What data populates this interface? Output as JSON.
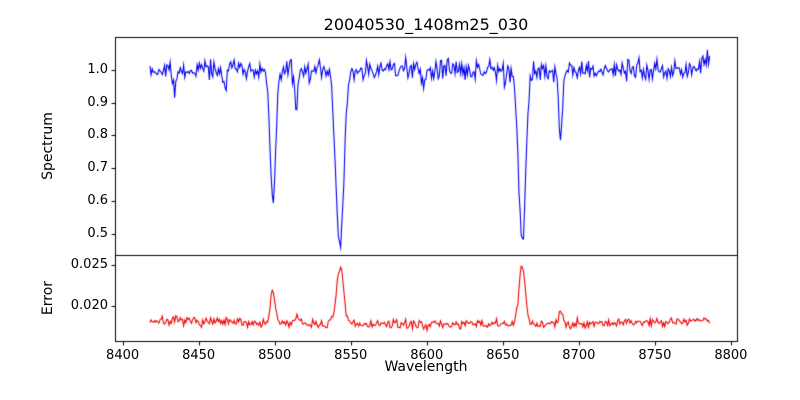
{
  "title": "20040530_1408m25_030",
  "axes": {
    "x": {
      "label": "Wavelength",
      "min": 8395,
      "max": 8804,
      "ticks": [
        8400,
        8450,
        8500,
        8550,
        8600,
        8650,
        8700,
        8750,
        8800
      ]
    },
    "spectrum_y": {
      "label": "Spectrum",
      "ticks": [
        0.5,
        0.6,
        0.7,
        0.8,
        0.9,
        1.0
      ]
    },
    "error_y": {
      "label": "Error",
      "ticks": [
        0.02,
        0.025
      ]
    }
  },
  "chart_data": [
    {
      "type": "line",
      "name": "spectrum",
      "color": "#0000ee",
      "x_range": [
        8418,
        8786
      ],
      "n_points": 500,
      "continuum": 1.0,
      "noise_sigma": 0.015,
      "absorption_lines": [
        {
          "center": 8434.0,
          "depth": 0.07,
          "width": 1.2
        },
        {
          "center": 8467.0,
          "depth": 0.06,
          "width": 1.0
        },
        {
          "center": 8498.8,
          "depth": 0.4,
          "width": 1.8
        },
        {
          "center": 8514.0,
          "depth": 0.1,
          "width": 1.3
        },
        {
          "center": 8542.9,
          "depth": 0.545,
          "width": 2.6
        },
        {
          "center": 8598.0,
          "depth": 0.05,
          "width": 1.2
        },
        {
          "center": 8662.7,
          "depth": 0.525,
          "width": 2.4
        },
        {
          "center": 8688.0,
          "depth": 0.22,
          "width": 1.1
        },
        {
          "center": 8789.0,
          "depth": -0.07,
          "width": 4.0
        }
      ],
      "ylim": [
        0.435,
        1.1
      ]
    },
    {
      "type": "line",
      "name": "error",
      "color": "#ee0000",
      "x_range": [
        8418,
        8786
      ],
      "n_points": 500,
      "baseline": 0.0178,
      "noise_sigma": 0.00028,
      "edge_rise": 0.0005,
      "edge_center": 8600,
      "edge_halfspan": 186,
      "peaks": [
        {
          "center": 8498.8,
          "height": 0.0037,
          "width": 1.6
        },
        {
          "center": 8514.0,
          "height": 0.0008,
          "width": 1.3
        },
        {
          "center": 8542.9,
          "height": 0.007,
          "width": 2.2
        },
        {
          "center": 8662.7,
          "height": 0.007,
          "width": 2.0
        },
        {
          "center": 8688.0,
          "height": 0.0013,
          "width": 1.1
        }
      ],
      "ylim": [
        0.0158,
        0.0262
      ]
    }
  ]
}
